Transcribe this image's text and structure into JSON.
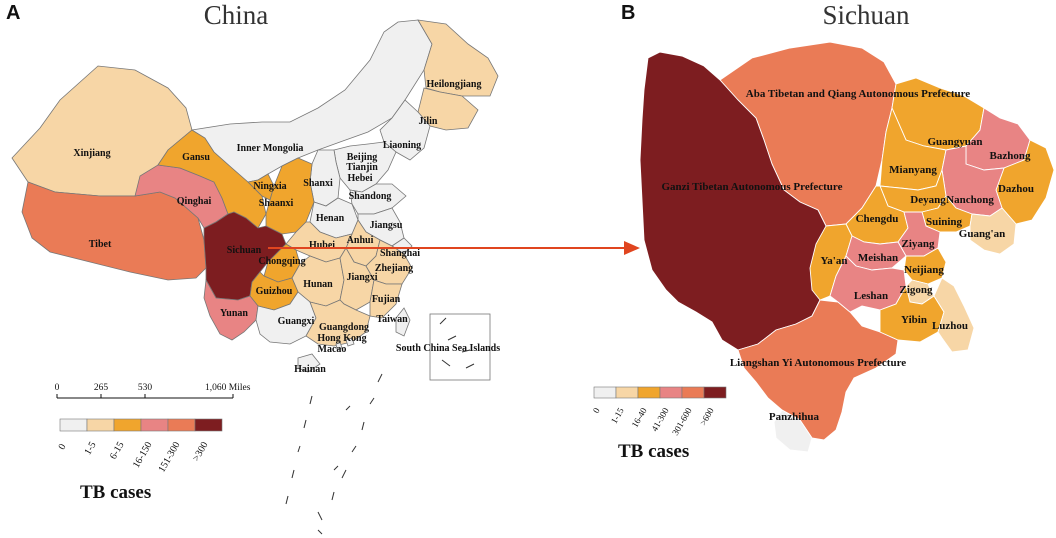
{
  "colors": {
    "china": {
      "c0": "#f0f0f0",
      "c1": "#f7d6a6",
      "c2": "#f0a52d",
      "c3": "#e88484",
      "c4": "#ea7b56",
      "c5": "#7d1d20"
    },
    "sichuan": {
      "c0": "#f0f0f0",
      "c1": "#f7d6a6",
      "c2": "#f0a52d",
      "c3": "#e88484",
      "c4": "#ea7b56",
      "c5": "#7d1d20"
    },
    "arrow": "#e0451f"
  },
  "panel_a": {
    "letter": "A",
    "title": "China",
    "legend": {
      "title": "TB cases",
      "classes": [
        {
          "label": "0",
          "color_key": "c0"
        },
        {
          "label": "1-5",
          "color_key": "c1"
        },
        {
          "label": "6-15",
          "color_key": "c2"
        },
        {
          "label": "16-150",
          "color_key": "c3"
        },
        {
          "label": "151-300",
          "color_key": "c4"
        },
        {
          "label": ">300",
          "color_key": "c5"
        }
      ]
    },
    "scale_bar": {
      "ticks": [
        "0",
        "265",
        "530",
        "1,060 Miles"
      ]
    },
    "regions": [
      {
        "name": "Xinjiang",
        "tb_class": "c1"
      },
      {
        "name": "Tibet",
        "tb_class": "c4"
      },
      {
        "name": "Qinghai",
        "tb_class": "c3"
      },
      {
        "name": "Gansu",
        "tb_class": "c2"
      },
      {
        "name": "Inner Mongolia",
        "tb_class": "c0"
      },
      {
        "name": "Heilongjiang",
        "tb_class": "c1"
      },
      {
        "name": "Jilin",
        "tb_class": "c1"
      },
      {
        "name": "Liaoning",
        "tb_class": "c0"
      },
      {
        "name": "Beijing",
        "tb_class": "c0"
      },
      {
        "name": "Tianjin",
        "tb_class": "c0"
      },
      {
        "name": "Hebei",
        "tb_class": "c0"
      },
      {
        "name": "Shanxi",
        "tb_class": "c0"
      },
      {
        "name": "Ningxia",
        "tb_class": "c2"
      },
      {
        "name": "Shaanxi",
        "tb_class": "c2"
      },
      {
        "name": "Henan",
        "tb_class": "c0"
      },
      {
        "name": "Shandong",
        "tb_class": "c0"
      },
      {
        "name": "Jiangsu",
        "tb_class": "c0"
      },
      {
        "name": "Anhui",
        "tb_class": "c1"
      },
      {
        "name": "Hubei",
        "tb_class": "c1"
      },
      {
        "name": "Shanghai",
        "tb_class": "c0"
      },
      {
        "name": "Sichuan",
        "tb_class": "c5"
      },
      {
        "name": "Chongqing",
        "tb_class": "c2"
      },
      {
        "name": "Hunan",
        "tb_class": "c1"
      },
      {
        "name": "Jiangxi",
        "tb_class": "c1"
      },
      {
        "name": "Zhejiang",
        "tb_class": "c1"
      },
      {
        "name": "Guizhou",
        "tb_class": "c2"
      },
      {
        "name": "Fujian",
        "tb_class": "c1"
      },
      {
        "name": "Yunan",
        "tb_class": "c3"
      },
      {
        "name": "Guangxi",
        "tb_class": "c0"
      },
      {
        "name": "Guangdong",
        "tb_class": "c1"
      },
      {
        "name": "Hong Kong",
        "tb_class": "c0"
      },
      {
        "name": "Macao",
        "tb_class": "c0"
      },
      {
        "name": "Taiwan",
        "tb_class": "c0"
      },
      {
        "name": "Hainan",
        "tb_class": "c0"
      },
      {
        "name": "South China Sea Islands",
        "tb_class": "c0"
      }
    ]
  },
  "panel_b": {
    "letter": "B",
    "title": "Sichuan",
    "legend": {
      "title": "TB cases",
      "classes": [
        {
          "label": "0",
          "color_key": "c0"
        },
        {
          "label": "1-15",
          "color_key": "c1"
        },
        {
          "label": "16-40",
          "color_key": "c2"
        },
        {
          "label": "41-300",
          "color_key": "c3"
        },
        {
          "label": "301-600",
          "color_key": "c4"
        },
        {
          "label": ">600",
          "color_key": "c5"
        }
      ]
    },
    "regions": [
      {
        "name": "Aba Tibetan and Qiang Autonomous Prefecture",
        "tb_class": "c4"
      },
      {
        "name": "Ganzi Tibetan Autonomous Prefecture",
        "tb_class": "c5"
      },
      {
        "name": "Liangshan Yi Autonomous Prefecture",
        "tb_class": "c4"
      },
      {
        "name": "Panzhihua",
        "tb_class": "c0"
      },
      {
        "name": "Guangyuan",
        "tb_class": "c2"
      },
      {
        "name": "Bazhong",
        "tb_class": "c3"
      },
      {
        "name": "Mianyang",
        "tb_class": "c2"
      },
      {
        "name": "Dazhou",
        "tb_class": "c2"
      },
      {
        "name": "Nanchong",
        "tb_class": "c3"
      },
      {
        "name": "Deyang",
        "tb_class": "c2"
      },
      {
        "name": "Chengdu",
        "tb_class": "c2"
      },
      {
        "name": "Suining",
        "tb_class": "c2"
      },
      {
        "name": "Guang'an",
        "tb_class": "c1"
      },
      {
        "name": "Ziyang",
        "tb_class": "c3"
      },
      {
        "name": "Ya'an",
        "tb_class": "c2"
      },
      {
        "name": "Meishan",
        "tb_class": "c3"
      },
      {
        "name": "Neijiang",
        "tb_class": "c2"
      },
      {
        "name": "Leshan",
        "tb_class": "c3"
      },
      {
        "name": "Zigong",
        "tb_class": "c1"
      },
      {
        "name": "Yibin",
        "tb_class": "c2"
      },
      {
        "name": "Luzhou",
        "tb_class": "c1"
      }
    ]
  }
}
